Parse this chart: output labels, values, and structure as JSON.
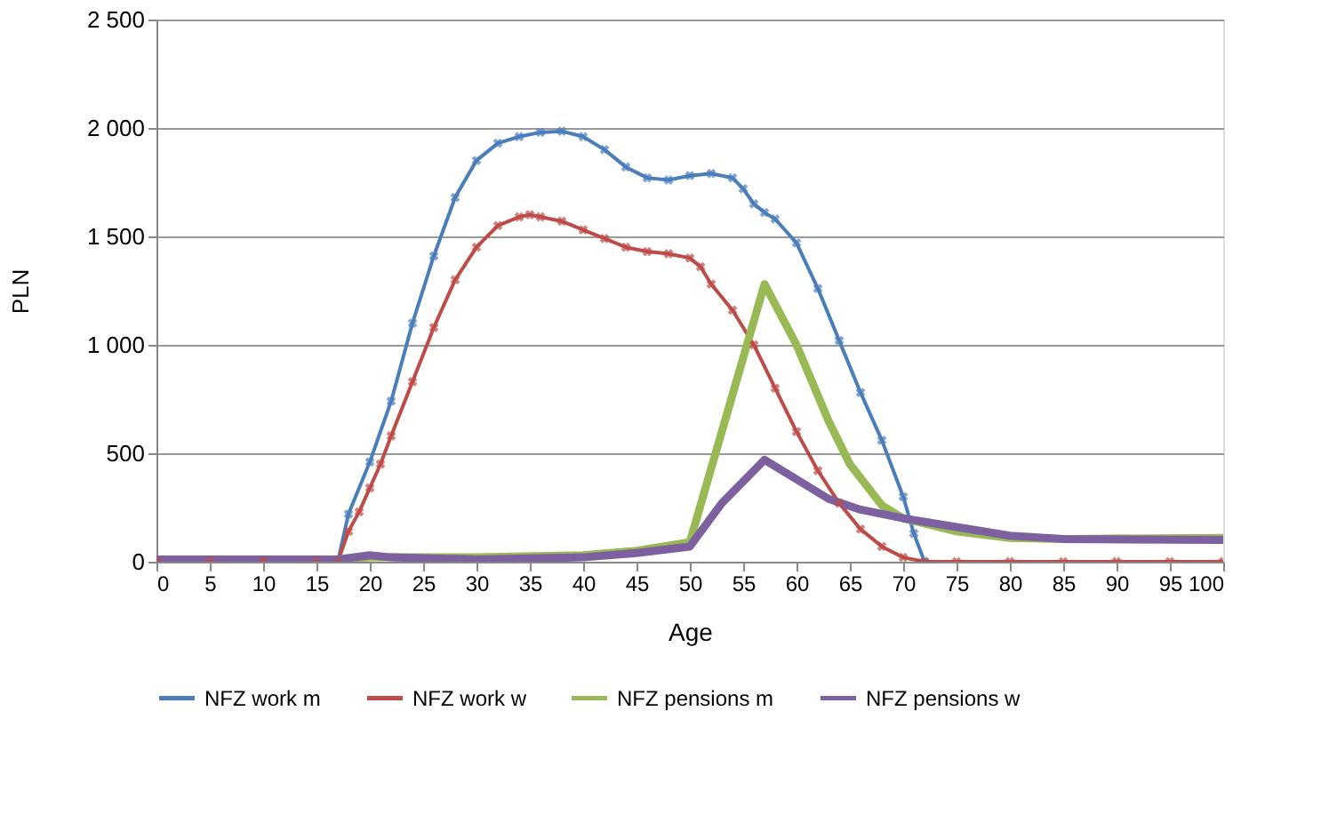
{
  "chart_data": {
    "type": "line",
    "xlabel": "Age",
    "ylabel": "PLN",
    "xlim": [
      0,
      100
    ],
    "xticks": [
      0,
      5,
      10,
      15,
      20,
      25,
      30,
      35,
      40,
      45,
      50,
      55,
      60,
      65,
      70,
      75,
      80,
      85,
      90,
      95,
      100
    ],
    "ylim": [
      0,
      2500
    ],
    "yticks": [
      0,
      {
        "value": 500,
        "label": "500"
      },
      {
        "value": 1000,
        "label": "1 000"
      },
      {
        "value": 1500,
        "label": "1 500"
      },
      {
        "value": 2000,
        "label": "2 000"
      },
      {
        "value": 2500,
        "label": "2 500"
      }
    ],
    "grid": "y",
    "legend": "bottom",
    "line_style": "solid",
    "series": [
      {
        "name": "NFZ work m",
        "color": "#4a7ebb",
        "marker": "cross",
        "x": [
          15,
          17,
          18,
          20,
          22,
          24,
          26,
          28,
          30,
          32,
          34,
          36,
          38,
          40,
          42,
          44,
          46,
          48,
          50,
          52,
          54,
          55,
          56,
          57,
          58,
          60,
          62,
          64,
          66,
          68,
          70,
          71,
          72
        ],
        "values": [
          0,
          0,
          220,
          460,
          740,
          1100,
          1410,
          1680,
          1850,
          1930,
          1960,
          1980,
          1985,
          1960,
          1900,
          1820,
          1770,
          1760,
          1780,
          1790,
          1770,
          1720,
          1650,
          1610,
          1580,
          1470,
          1260,
          1020,
          780,
          560,
          300,
          130,
          0
        ]
      },
      {
        "name": "NFZ work w",
        "color": "#be4b48",
        "marker": "cross",
        "x": [
          0,
          5,
          10,
          15,
          17,
          18,
          19,
          20,
          21,
          22,
          24,
          26,
          28,
          30,
          32,
          34,
          35,
          36,
          38,
          40,
          42,
          44,
          46,
          48,
          50,
          51,
          52,
          54,
          56,
          58,
          60,
          62,
          64,
          66,
          68,
          70,
          72,
          75,
          80,
          85,
          90,
          95,
          100
        ],
        "values": [
          0,
          0,
          0,
          0,
          0,
          140,
          230,
          340,
          450,
          580,
          830,
          1080,
          1300,
          1450,
          1550,
          1590,
          1600,
          1590,
          1570,
          1530,
          1490,
          1450,
          1430,
          1420,
          1400,
          1360,
          1280,
          1160,
          1000,
          800,
          600,
          420,
          270,
          150,
          70,
          20,
          0,
          0,
          0,
          0,
          0,
          0,
          0
        ]
      },
      {
        "name": "NFZ pensions m",
        "color": "#98b954",
        "marker": "none",
        "x": [
          0,
          17,
          20,
          30,
          40,
          45,
          50,
          57,
          60,
          63,
          65,
          68,
          70,
          75,
          80,
          85,
          100
        ],
        "values": [
          10,
          10,
          20,
          20,
          30,
          50,
          90,
          1280,
          1000,
          650,
          450,
          260,
          200,
          140,
          110,
          105,
          110
        ]
      },
      {
        "name": "NFZ pensions w",
        "color": "#7d60a0",
        "marker": "none",
        "x": [
          0,
          17,
          20,
          22,
          30,
          40,
          45,
          50,
          53,
          57,
          60,
          63,
          66,
          70,
          75,
          80,
          85,
          100
        ],
        "values": [
          10,
          10,
          30,
          20,
          10,
          20,
          40,
          70,
          270,
          470,
          380,
          290,
          240,
          200,
          160,
          120,
          105,
          100
        ]
      }
    ]
  }
}
